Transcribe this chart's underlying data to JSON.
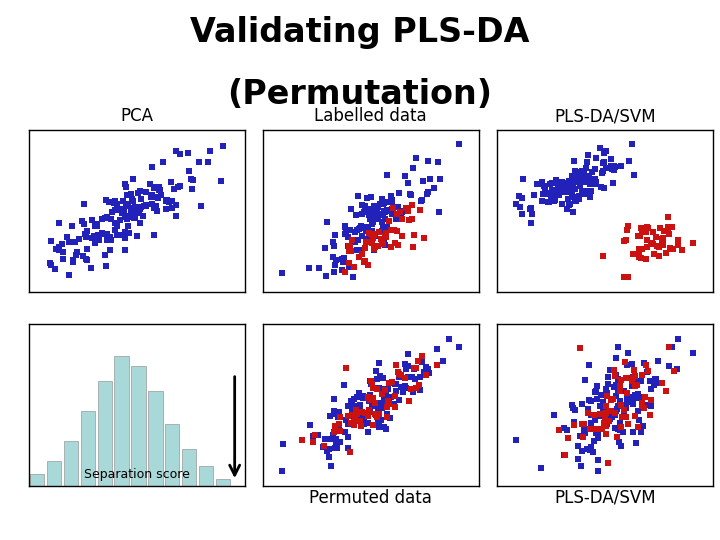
{
  "title_line1": "Validating PLS-DA",
  "title_line2": "(Permutation)",
  "title_fontsize": 24,
  "title_fontweight": "bold",
  "background_color": "#ffffff",
  "blue_color": "#2222bb",
  "red_color": "#cc1111",
  "hist_color": "#a8d8d8",
  "labels": {
    "pca": "PCA",
    "labelled": "Labelled data",
    "plsda_top": "PLS-DA/SVM",
    "permuted": "Permuted data",
    "plsda_bottom": "PLS-DA/SVM",
    "sep_score": "Separation score"
  },
  "label_fontsize": 12,
  "sep_score_fontsize": 9,
  "marker_size": 18,
  "marker": "s"
}
